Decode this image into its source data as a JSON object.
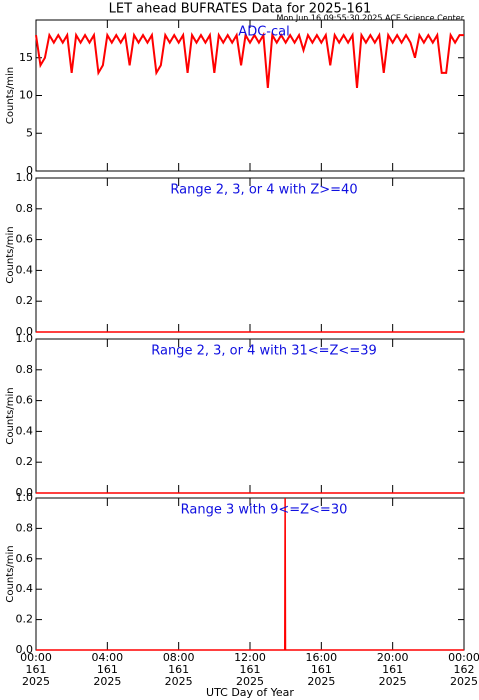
{
  "title": "LET ahead BUFRATES Data for 2025-161",
  "timestamp": "Mon Jun 16 09:55:30 2025 ACE Science Center",
  "x_axis": {
    "label": "UTC Day of Year",
    "xlim": [
      0,
      24
    ],
    "xticks": [
      {
        "value": 0,
        "label": "00:00"
      },
      {
        "value": 4,
        "label": "04:00"
      },
      {
        "value": 8,
        "label": "08:00"
      },
      {
        "value": 12,
        "label": "12:00"
      },
      {
        "value": 16,
        "label": "16:00"
      },
      {
        "value": 20,
        "label": "20:00"
      },
      {
        "value": 24,
        "label": "00:00"
      }
    ],
    "tick_days": [
      "161",
      "161",
      "161",
      "161",
      "161",
      "161",
      "162"
    ],
    "tick_years": [
      "2025",
      "2025",
      "2025",
      "2025",
      "2025",
      "2025",
      "2025"
    ]
  },
  "chart_data": [
    {
      "type": "line",
      "annotation": "ADC-cal",
      "ylabel": "Counts/min",
      "ylim": [
        0,
        20
      ],
      "yticks": [
        0,
        5,
        10,
        15
      ],
      "color": "#ff0000",
      "x": [
        0,
        0.25,
        0.5,
        0.75,
        1,
        1.25,
        1.5,
        1.75,
        2,
        2.25,
        2.5,
        2.75,
        3,
        3.25,
        3.5,
        3.75,
        4,
        4.25,
        4.5,
        4.75,
        5,
        5.25,
        5.5,
        5.75,
        6,
        6.25,
        6.5,
        6.75,
        7,
        7.25,
        7.5,
        7.75,
        8,
        8.25,
        8.5,
        8.75,
        9,
        9.25,
        9.5,
        9.75,
        10,
        10.25,
        10.5,
        10.75,
        11,
        11.25,
        11.5,
        11.75,
        12,
        12.25,
        12.5,
        12.75,
        13,
        13.25,
        13.5,
        13.75,
        14,
        14.25,
        14.5,
        14.75,
        15,
        15.25,
        15.5,
        15.75,
        16,
        16.25,
        16.5,
        16.75,
        17,
        17.25,
        17.5,
        17.75,
        18,
        18.25,
        18.5,
        18.75,
        19,
        19.25,
        19.5,
        19.75,
        20,
        20.25,
        20.5,
        20.75,
        21,
        21.25,
        21.5,
        21.75,
        22,
        22.25,
        22.5,
        22.75,
        23,
        23.25,
        23.5,
        23.75,
        24
      ],
      "values": [
        18,
        14,
        15,
        18,
        17,
        18,
        17,
        18,
        13,
        18,
        17,
        18,
        17,
        18,
        13,
        14,
        18,
        17,
        18,
        17,
        18,
        14,
        18,
        17,
        18,
        17,
        18,
        13,
        14,
        18,
        17,
        18,
        17,
        18,
        13,
        18,
        17,
        18,
        17,
        18,
        13,
        18,
        17,
        18,
        17,
        18,
        14,
        18,
        17,
        18,
        17,
        18,
        11,
        18,
        17,
        18,
        17,
        18,
        17,
        18,
        16,
        18,
        17,
        18,
        17,
        18,
        14,
        18,
        17,
        18,
        17,
        18,
        11,
        18,
        17,
        18,
        17,
        18,
        13,
        18,
        17,
        18,
        17,
        18,
        17,
        15,
        18,
        17,
        18,
        17,
        18,
        13,
        13,
        18,
        17,
        18,
        18
      ]
    },
    {
      "type": "line",
      "annotation": "Range 2, 3, or 4 with Z>=40",
      "ylabel": "Counts/min",
      "ylim": [
        0,
        1
      ],
      "yticks": [
        {
          "value": 0,
          "label": "0.0"
        },
        {
          "value": 0.2,
          "label": "0.2"
        },
        {
          "value": 0.4,
          "label": "0.4"
        },
        {
          "value": 0.6,
          "label": "0.6"
        },
        {
          "value": 0.8,
          "label": "0.8"
        },
        {
          "value": 1,
          "label": "1.0"
        }
      ],
      "color": "#ff0000",
      "x": [
        0,
        24
      ],
      "values": [
        0,
        0
      ]
    },
    {
      "type": "line",
      "annotation": "Range 2, 3, or 4 with 31<=Z<=39",
      "ylabel": "Counts/min",
      "ylim": [
        0,
        1
      ],
      "yticks": [
        {
          "value": 0,
          "label": "0.0"
        },
        {
          "value": 0.2,
          "label": "0.2"
        },
        {
          "value": 0.4,
          "label": "0.4"
        },
        {
          "value": 0.6,
          "label": "0.6"
        },
        {
          "value": 0.8,
          "label": "0.8"
        },
        {
          "value": 1,
          "label": "1.0"
        }
      ],
      "color": "#ff0000",
      "x": [
        0,
        24
      ],
      "values": [
        0,
        0
      ]
    },
    {
      "type": "line",
      "annotation": "Range 3 with 9<=Z<=30",
      "ylabel": "Counts/min",
      "ylim": [
        0,
        1
      ],
      "yticks": [
        {
          "value": 0,
          "label": "0.0"
        },
        {
          "value": 0.2,
          "label": "0.2"
        },
        {
          "value": 0.4,
          "label": "0.4"
        },
        {
          "value": 0.6,
          "label": "0.6"
        },
        {
          "value": 0.8,
          "label": "0.8"
        },
        {
          "value": 1,
          "label": "1.0"
        }
      ],
      "color": "#ff0000",
      "x": [
        0,
        13.95,
        13.97,
        13.99,
        24
      ],
      "values": [
        0,
        0,
        1,
        0,
        0
      ]
    }
  ]
}
